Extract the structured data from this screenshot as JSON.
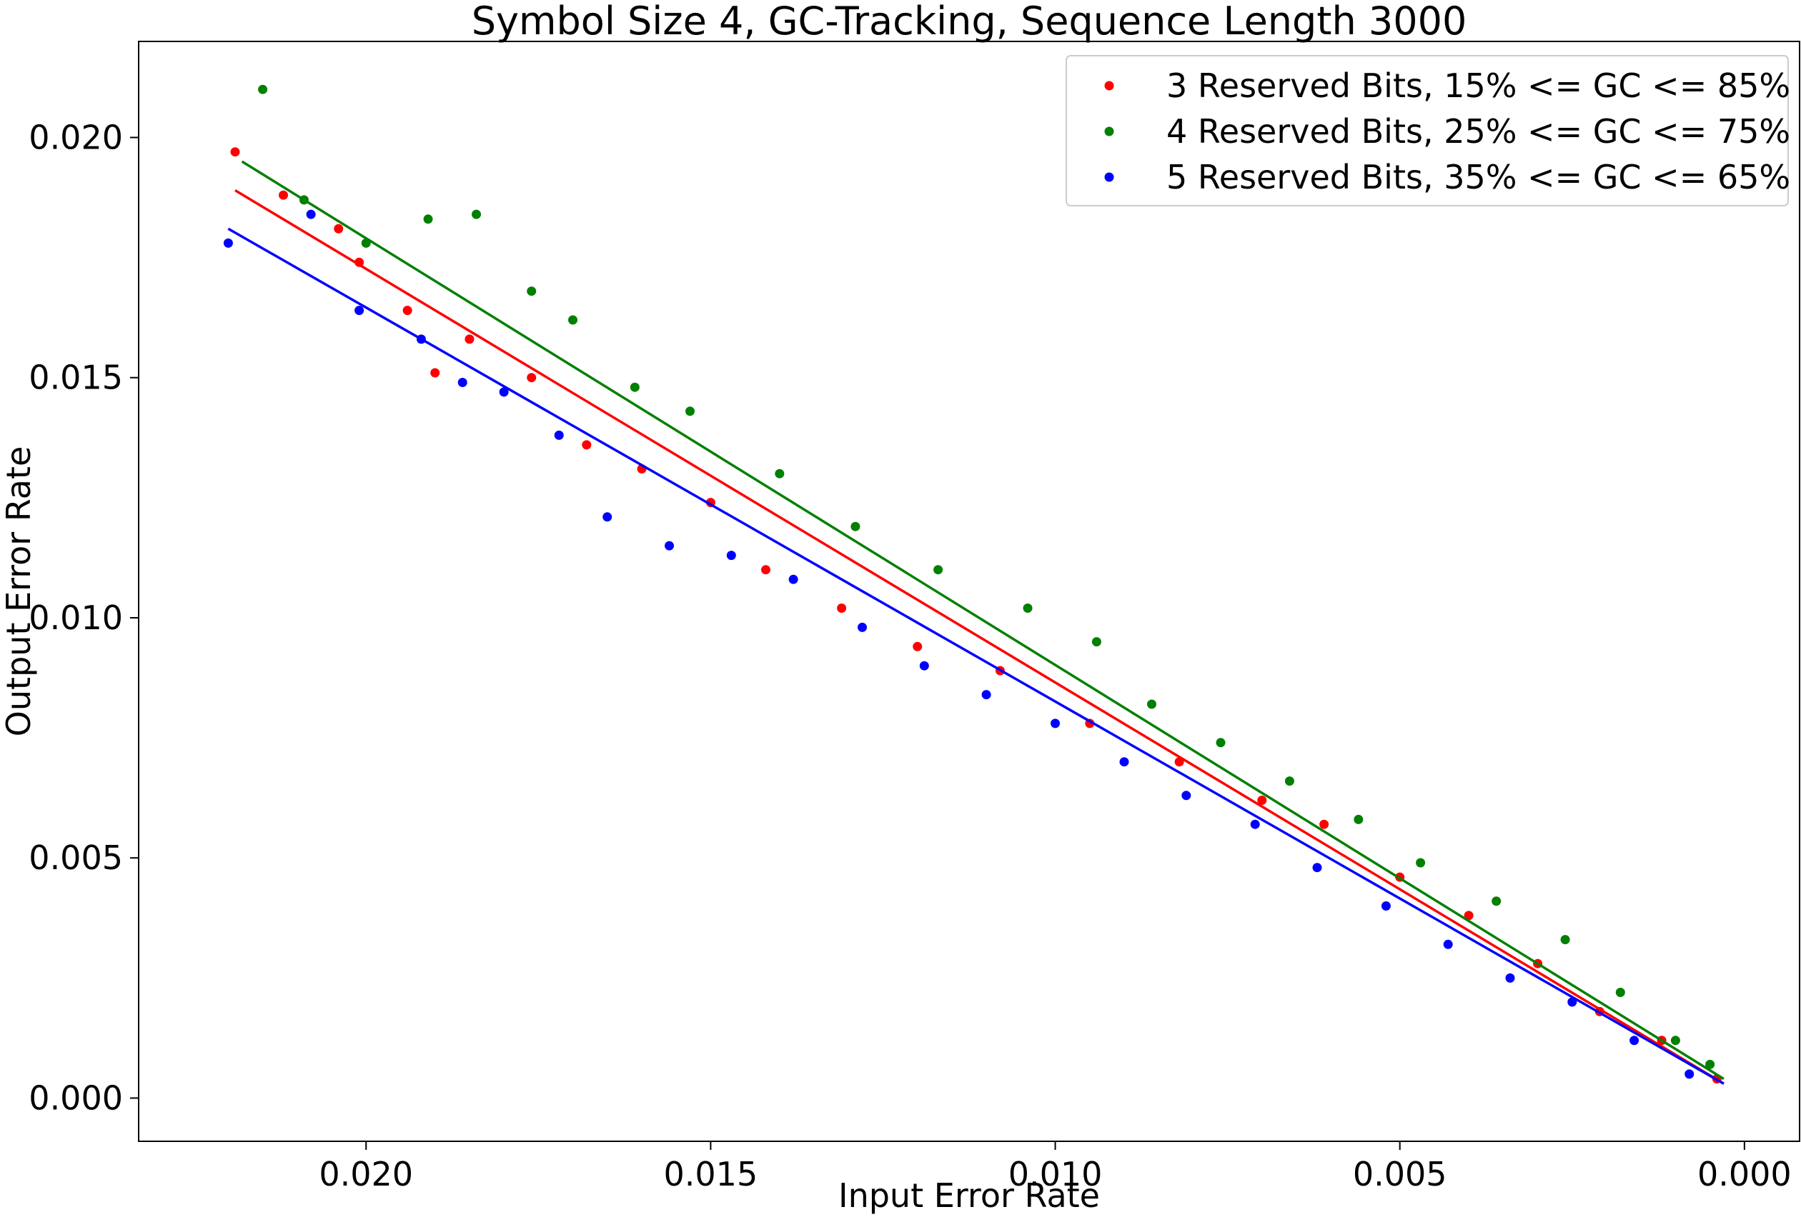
{
  "chart_data": {
    "type": "scatter",
    "title": "Symbol Size 4, GC-Tracking, Sequence Length 3000",
    "xlabel": "Input Error Rate",
    "ylabel": "Output Error Rate",
    "x_inverted": true,
    "xlim": [
      0.0233,
      -0.0008
    ],
    "ylim": [
      -0.0009,
      0.022
    ],
    "xticks": [
      0.02,
      0.015,
      0.01,
      0.005,
      0.0
    ],
    "xtick_labels": [
      "0.020",
      "0.015",
      "0.010",
      "0.005",
      "0.000"
    ],
    "yticks": [
      0.0,
      0.005,
      0.01,
      0.015,
      0.02
    ],
    "ytick_labels": [
      "0.000",
      "0.005",
      "0.010",
      "0.015",
      "0.020"
    ],
    "grid": false,
    "legend_position": "top-right",
    "series": [
      {
        "name": "3 Reserved Bits, 15% <= GC <= 85%",
        "color": "#ff0000",
        "fit": {
          "x": [
            0.0219,
            0.0003
          ],
          "y": [
            0.0189,
            0.0003
          ]
        },
        "x": [
          0.0219,
          0.0212,
          0.0204,
          0.0201,
          0.0194,
          0.019,
          0.0185,
          0.0176,
          0.0168,
          0.016,
          0.015,
          0.0142,
          0.0131,
          0.012,
          0.0108,
          0.0095,
          0.0082,
          0.007,
          0.0061,
          0.005,
          0.004,
          0.003,
          0.0021,
          0.0012,
          0.0004
        ],
        "y": [
          0.0197,
          0.0188,
          0.0181,
          0.0174,
          0.0164,
          0.0151,
          0.0158,
          0.015,
          0.0136,
          0.0131,
          0.0124,
          0.011,
          0.0102,
          0.0094,
          0.0089,
          0.0078,
          0.007,
          0.0062,
          0.0057,
          0.0046,
          0.0038,
          0.0028,
          0.0018,
          0.0012,
          0.0004
        ]
      },
      {
        "name": "4 Reserved Bits, 25% <= GC <= 75%",
        "color": "#008000",
        "fit": {
          "x": [
            0.0218,
            0.0003
          ],
          "y": [
            0.0195,
            0.0004
          ]
        },
        "x": [
          0.0215,
          0.0209,
          0.02,
          0.0191,
          0.0184,
          0.0176,
          0.017,
          0.0161,
          0.0153,
          0.014,
          0.0129,
          0.0117,
          0.0104,
          0.0094,
          0.0086,
          0.0076,
          0.0066,
          0.0056,
          0.0047,
          0.0036,
          0.0026,
          0.0018,
          0.001,
          0.0005
        ],
        "y": [
          0.021,
          0.0187,
          0.0178,
          0.0183,
          0.0184,
          0.0168,
          0.0162,
          0.0148,
          0.0143,
          0.013,
          0.0119,
          0.011,
          0.0102,
          0.0095,
          0.0082,
          0.0074,
          0.0066,
          0.0058,
          0.0049,
          0.0041,
          0.0033,
          0.0022,
          0.0012,
          0.0007
        ]
      },
      {
        "name": "5 Reserved Bits, 35% <= GC <= 65%",
        "color": "#0000ff",
        "fit": {
          "x": [
            0.022,
            0.0003
          ],
          "y": [
            0.0181,
            0.0003
          ]
        },
        "x": [
          0.022,
          0.0208,
          0.0201,
          0.0192,
          0.0186,
          0.018,
          0.0172,
          0.0165,
          0.0156,
          0.0147,
          0.0138,
          0.0128,
          0.0119,
          0.011,
          0.01,
          0.009,
          0.0081,
          0.0071,
          0.0062,
          0.0052,
          0.0043,
          0.0034,
          0.0025,
          0.0016,
          0.0008
        ],
        "y": [
          0.0178,
          0.0184,
          0.0164,
          0.0158,
          0.0149,
          0.0147,
          0.0138,
          0.0121,
          0.0115,
          0.0113,
          0.0108,
          0.0098,
          0.009,
          0.0084,
          0.0078,
          0.007,
          0.0063,
          0.0057,
          0.0048,
          0.004,
          0.0032,
          0.0025,
          0.002,
          0.0012,
          0.0005
        ]
      }
    ]
  }
}
